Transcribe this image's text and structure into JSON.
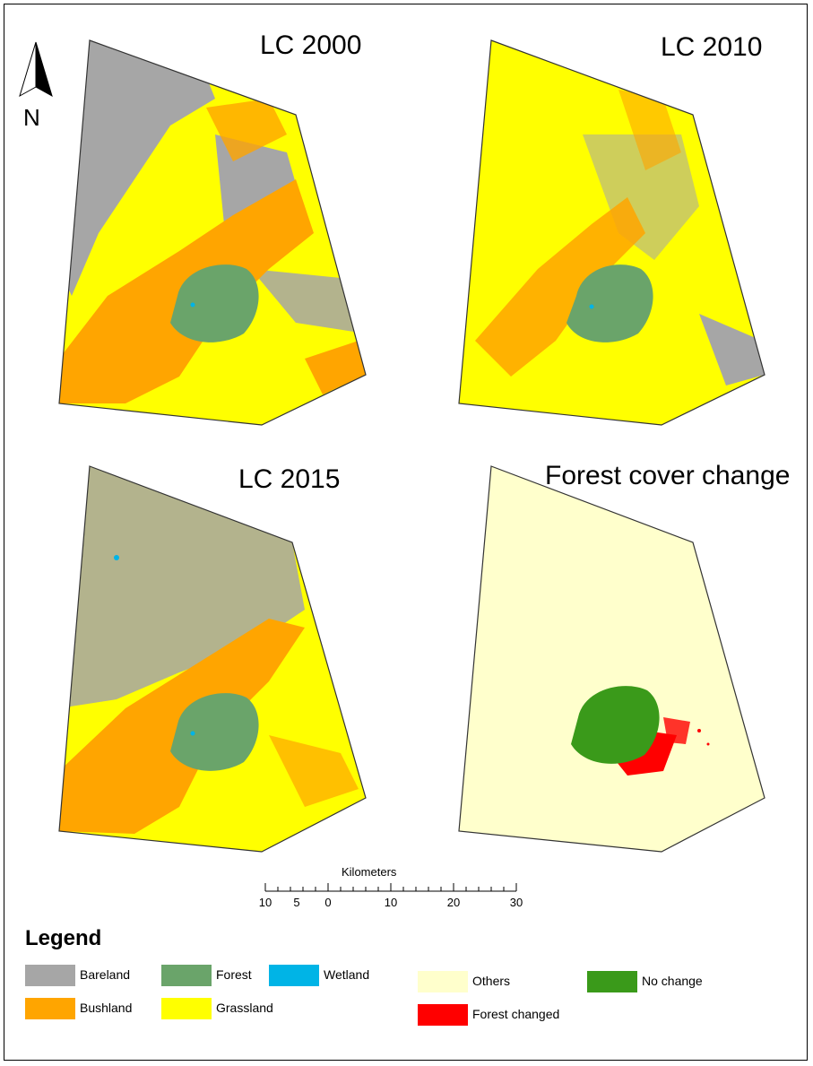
{
  "panels": {
    "lc2000": {
      "title": "LC 2000"
    },
    "lc2010": {
      "title": "LC 2010"
    },
    "lc2015": {
      "title": "LC 2015"
    },
    "change": {
      "title": "Forest cover change"
    }
  },
  "north_arrow": {
    "label": "N"
  },
  "scale_bar": {
    "title": "Kilometers",
    "ticks": [
      "10",
      "5",
      "0",
      "10",
      "20",
      "30"
    ]
  },
  "legend": {
    "title": "Legend",
    "land_cover": [
      {
        "label": "Bareland",
        "color": "#a6a6a6"
      },
      {
        "label": "Forest",
        "color": "#6aa46a"
      },
      {
        "label": "Wetland",
        "color": "#00b4e6"
      },
      {
        "label": "Bushland",
        "color": "#ffa500"
      },
      {
        "label": "Grassland",
        "color": "#ffff00"
      }
    ],
    "change_classes": [
      {
        "label": "Others",
        "color": "#ffffcc"
      },
      {
        "label": "No change",
        "color": "#3a9a1a"
      },
      {
        "label": "Forest changed",
        "color": "#ff0000"
      }
    ]
  }
}
